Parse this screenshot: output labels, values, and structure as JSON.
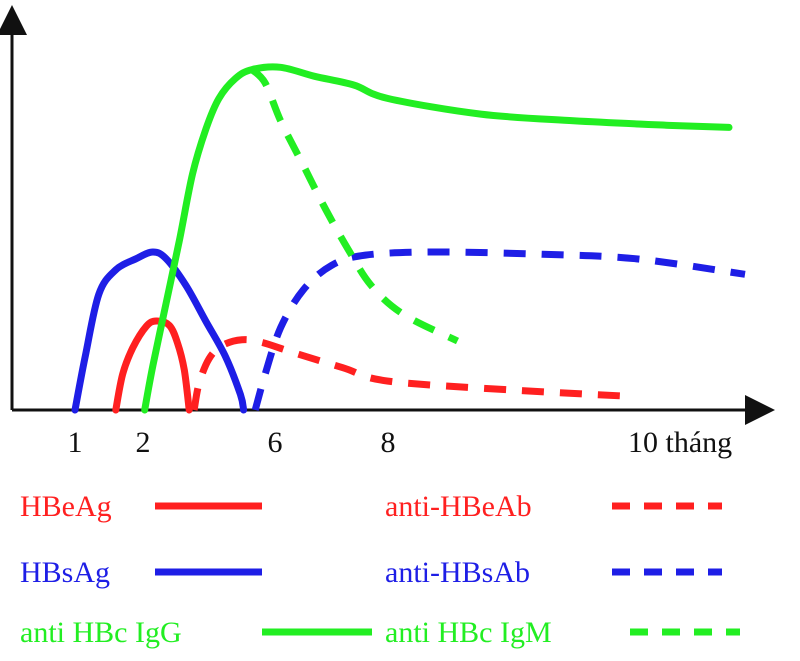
{
  "chart_data": {
    "type": "line",
    "title": "",
    "xlabel": "",
    "ylabel": "",
    "x_ticks": [
      {
        "value": 1,
        "label": "1"
      },
      {
        "value": 2,
        "label": "2"
      },
      {
        "value": 6,
        "label": "6"
      },
      {
        "value": 8,
        "label": "8"
      },
      {
        "value": 10,
        "label": "10 tháng"
      }
    ],
    "grid": false,
    "legend_position": "bottom",
    "series": [
      {
        "name": "HBeAg",
        "color": "#ff2020",
        "dash": "solid",
        "points": [
          [
            1.6,
            0
          ],
          [
            1.7,
            8
          ],
          [
            1.85,
            14
          ],
          [
            2.1,
            18.8
          ],
          [
            2.4,
            20
          ],
          [
            2.8,
            19
          ],
          [
            3.05,
            15
          ],
          [
            3.25,
            9
          ],
          [
            3.4,
            0
          ]
        ]
      },
      {
        "name": "anti-HBeAb",
        "color": "#ff2020",
        "dash": "dashed",
        "points": [
          [
            3.55,
            0
          ],
          [
            3.7,
            6
          ],
          [
            4.0,
            11.5
          ],
          [
            4.4,
            14.5
          ],
          [
            5.0,
            15.8
          ],
          [
            5.6,
            15.2
          ],
          [
            6.3,
            13
          ],
          [
            7.2,
            9.5
          ],
          [
            8.0,
            6.5
          ],
          [
            8.8,
            4.5
          ],
          [
            9.6,
            3
          ]
        ]
      },
      {
        "name": "HBsAg",
        "color": "#1e1ee6",
        "dash": "solid",
        "points": [
          [
            1.0,
            0
          ],
          [
            1.15,
            12
          ],
          [
            1.35,
            26
          ],
          [
            1.6,
            31.5
          ],
          [
            1.9,
            34
          ],
          [
            2.3,
            35.5
          ],
          [
            2.7,
            34
          ],
          [
            3.3,
            28
          ],
          [
            3.9,
            20
          ],
          [
            4.5,
            12
          ],
          [
            4.95,
            3.5
          ],
          [
            5.05,
            0
          ]
        ]
      },
      {
        "name": "anti-HBsAb",
        "color": "#1e1ee6",
        "dash": "dashed",
        "points": [
          [
            5.4,
            0
          ],
          [
            5.7,
            8
          ],
          [
            6.1,
            18.5
          ],
          [
            6.5,
            27
          ],
          [
            7.0,
            32.5
          ],
          [
            7.6,
            34.8
          ],
          [
            8.3,
            35.5
          ],
          [
            9.0,
            35
          ],
          [
            9.6,
            34
          ],
          [
            10.6,
            30.5
          ]
        ]
      },
      {
        "name": "anti HBc IgG",
        "color": "#22ee22",
        "dash": "solid",
        "points": [
          [
            2.05,
            0
          ],
          [
            2.3,
            10
          ],
          [
            2.7,
            24
          ],
          [
            3.1,
            38
          ],
          [
            3.5,
            53
          ],
          [
            3.9,
            63
          ],
          [
            4.3,
            70
          ],
          [
            4.8,
            74.5
          ],
          [
            5.3,
            76.5
          ],
          [
            6.1,
            77
          ],
          [
            6.7,
            75
          ],
          [
            7.4,
            73
          ],
          [
            8.0,
            70
          ],
          [
            8.6,
            66.5
          ],
          [
            9.2,
            65
          ],
          [
            9.8,
            64
          ],
          [
            10.4,
            63.5
          ]
        ]
      },
      {
        "name": "anti HBc IgM",
        "color": "#22ee22",
        "dash": "dashed",
        "points": [
          [
            5.3,
            76.5
          ],
          [
            5.7,
            73.5
          ],
          [
            6.1,
            65
          ],
          [
            6.5,
            55
          ],
          [
            6.9,
            45
          ],
          [
            7.3,
            36
          ],
          [
            7.7,
            28
          ],
          [
            8.1,
            21.5
          ],
          [
            8.45,
            15.5
          ]
        ]
      }
    ]
  }
}
